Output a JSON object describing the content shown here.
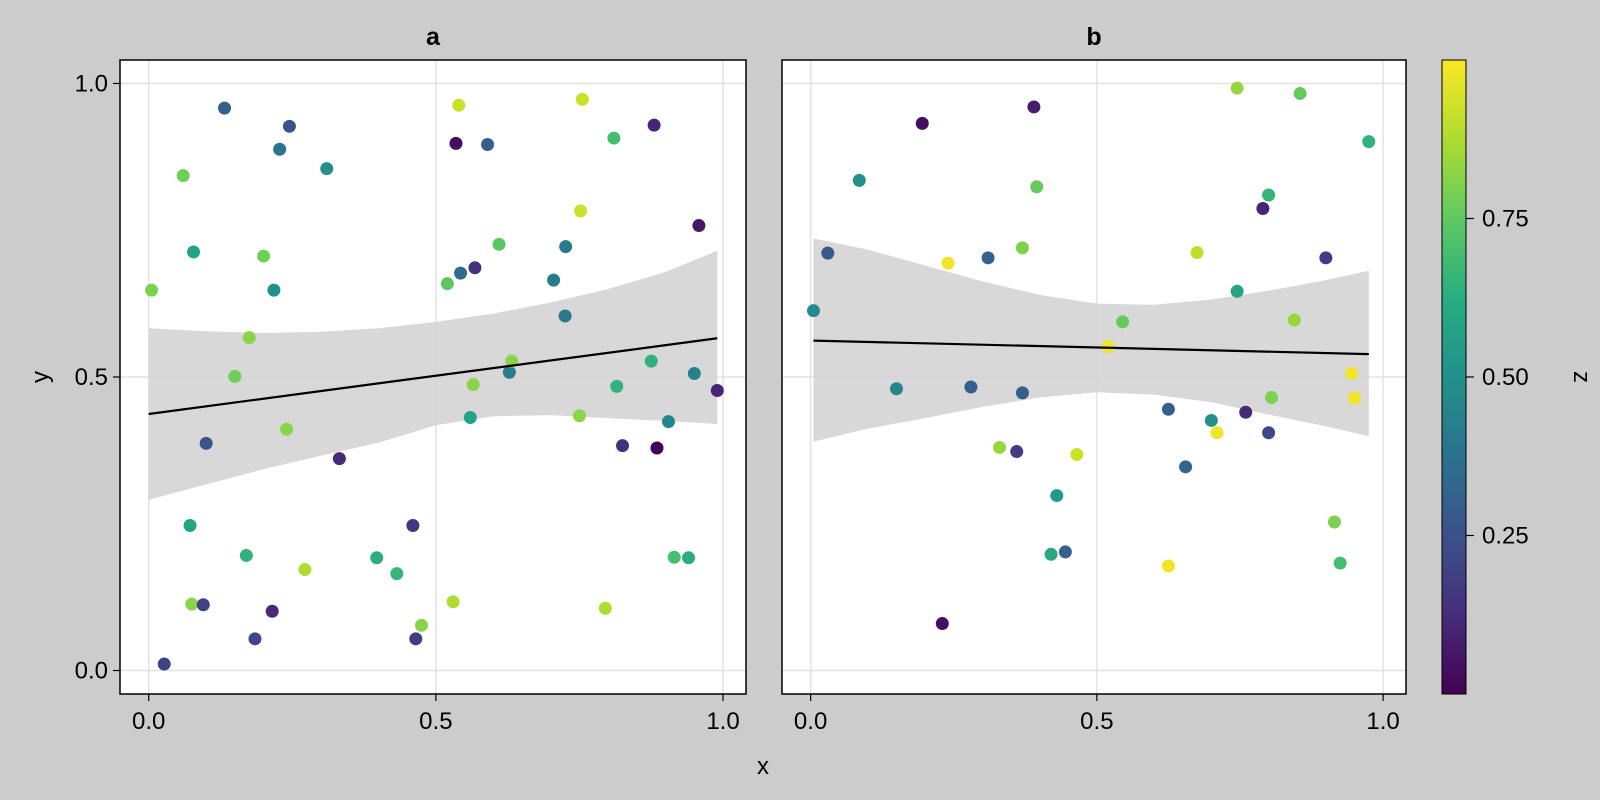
{
  "chart_data": {
    "type": "scatter",
    "xlabel": "x",
    "ylabel": "y",
    "colorbar": {
      "label": "z",
      "range": [
        0.0,
        1.0
      ],
      "ticks": [
        "0.25",
        "0.50",
        "0.75"
      ],
      "tick_values": [
        0.25,
        0.5,
        0.75
      ],
      "colormap": "viridis"
    },
    "grid": true,
    "panels": [
      {
        "title": "a",
        "xlim": [
          -0.05,
          1.04
        ],
        "ylim": [
          -0.04,
          1.04
        ],
        "xticks": [
          "0.0",
          "0.5",
          "1.0"
        ],
        "xtick_values": [
          0.0,
          0.5,
          1.0
        ],
        "yticks": [
          "0.0",
          "0.5",
          "1.0"
        ],
        "ytick_values": [
          0.0,
          0.5,
          1.0
        ],
        "fit": {
          "x": [
            0.0,
            0.99
          ],
          "y": [
            0.437,
            0.566
          ]
        },
        "band": {
          "x": [
            0.0,
            0.1,
            0.2,
            0.3,
            0.4,
            0.5,
            0.6,
            0.7,
            0.8,
            0.9,
            0.99
          ],
          "upper": [
            0.583,
            0.578,
            0.575,
            0.577,
            0.583,
            0.594,
            0.608,
            0.627,
            0.65,
            0.679,
            0.715
          ],
          "lower": [
            0.291,
            0.317,
            0.343,
            0.366,
            0.388,
            0.418,
            0.433,
            0.435,
            0.43,
            0.425,
            0.42
          ]
        },
        "points": [
          {
            "x": 0.005,
            "y": 0.648,
            "z": 0.8
          },
          {
            "x": 0.027,
            "y": 0.011,
            "z": 0.2
          },
          {
            "x": 0.06,
            "y": 0.843,
            "z": 0.78
          },
          {
            "x": 0.072,
            "y": 0.247,
            "z": 0.58
          },
          {
            "x": 0.075,
            "y": 0.113,
            "z": 0.82
          },
          {
            "x": 0.078,
            "y": 0.713,
            "z": 0.58
          },
          {
            "x": 0.095,
            "y": 0.112,
            "z": 0.2
          },
          {
            "x": 0.1,
            "y": 0.387,
            "z": 0.26
          },
          {
            "x": 0.132,
            "y": 0.958,
            "z": 0.3
          },
          {
            "x": 0.15,
            "y": 0.501,
            "z": 0.78
          },
          {
            "x": 0.17,
            "y": 0.196,
            "z": 0.64
          },
          {
            "x": 0.175,
            "y": 0.567,
            "z": 0.82
          },
          {
            "x": 0.185,
            "y": 0.054,
            "z": 0.22
          },
          {
            "x": 0.2,
            "y": 0.706,
            "z": 0.78
          },
          {
            "x": 0.215,
            "y": 0.101,
            "z": 0.12
          },
          {
            "x": 0.218,
            "y": 0.648,
            "z": 0.5
          },
          {
            "x": 0.228,
            "y": 0.888,
            "z": 0.38
          },
          {
            "x": 0.24,
            "y": 0.411,
            "z": 0.82
          },
          {
            "x": 0.245,
            "y": 0.927,
            "z": 0.26
          },
          {
            "x": 0.272,
            "y": 0.172,
            "z": 0.88
          },
          {
            "x": 0.31,
            "y": 0.855,
            "z": 0.5
          },
          {
            "x": 0.332,
            "y": 0.361,
            "z": 0.12
          },
          {
            "x": 0.397,
            "y": 0.192,
            "z": 0.62
          },
          {
            "x": 0.432,
            "y": 0.165,
            "z": 0.66
          },
          {
            "x": 0.46,
            "y": 0.247,
            "z": 0.16
          },
          {
            "x": 0.465,
            "y": 0.054,
            "z": 0.18
          },
          {
            "x": 0.475,
            "y": 0.077,
            "z": 0.82
          },
          {
            "x": 0.52,
            "y": 0.659,
            "z": 0.74
          },
          {
            "x": 0.53,
            "y": 0.117,
            "z": 0.88
          },
          {
            "x": 0.535,
            "y": 0.898,
            "z": 0.04
          },
          {
            "x": 0.54,
            "y": 0.963,
            "z": 0.92
          },
          {
            "x": 0.543,
            "y": 0.677,
            "z": 0.34
          },
          {
            "x": 0.56,
            "y": 0.431,
            "z": 0.58
          },
          {
            "x": 0.565,
            "y": 0.487,
            "z": 0.82
          },
          {
            "x": 0.568,
            "y": 0.686,
            "z": 0.14
          },
          {
            "x": 0.59,
            "y": 0.896,
            "z": 0.3
          },
          {
            "x": 0.61,
            "y": 0.726,
            "z": 0.74
          },
          {
            "x": 0.628,
            "y": 0.508,
            "z": 0.42
          },
          {
            "x": 0.632,
            "y": 0.527,
            "z": 0.82
          },
          {
            "x": 0.705,
            "y": 0.665,
            "z": 0.42
          },
          {
            "x": 0.725,
            "y": 0.604,
            "z": 0.4
          },
          {
            "x": 0.726,
            "y": 0.722,
            "z": 0.4
          },
          {
            "x": 0.75,
            "y": 0.434,
            "z": 0.82
          },
          {
            "x": 0.752,
            "y": 0.783,
            "z": 0.92
          },
          {
            "x": 0.755,
            "y": 0.973,
            "z": 0.92
          },
          {
            "x": 0.795,
            "y": 0.106,
            "z": 0.88
          },
          {
            "x": 0.81,
            "y": 0.907,
            "z": 0.7
          },
          {
            "x": 0.815,
            "y": 0.484,
            "z": 0.64
          },
          {
            "x": 0.825,
            "y": 0.383,
            "z": 0.14
          },
          {
            "x": 0.875,
            "y": 0.527,
            "z": 0.64
          },
          {
            "x": 0.88,
            "y": 0.929,
            "z": 0.1
          },
          {
            "x": 0.885,
            "y": 0.379,
            "z": 0.0
          },
          {
            "x": 0.905,
            "y": 0.424,
            "z": 0.46
          },
          {
            "x": 0.915,
            "y": 0.193,
            "z": 0.7
          },
          {
            "x": 0.94,
            "y": 0.192,
            "z": 0.62
          },
          {
            "x": 0.95,
            "y": 0.506,
            "z": 0.44
          },
          {
            "x": 0.958,
            "y": 0.758,
            "z": 0.06
          },
          {
            "x": 0.99,
            "y": 0.477,
            "z": 0.1
          }
        ]
      },
      {
        "title": "b",
        "xlim": [
          -0.05,
          1.04
        ],
        "ylim": [
          -0.04,
          1.04
        ],
        "xticks": [
          "0.0",
          "0.5",
          "1.0"
        ],
        "xtick_values": [
          0.0,
          0.5,
          1.0
        ],
        "fit": {
          "x": [
            0.005,
            0.975
          ],
          "y": [
            0.562,
            0.539
          ]
        },
        "band": {
          "x": [
            0.005,
            0.1,
            0.2,
            0.3,
            0.4,
            0.5,
            0.6,
            0.7,
            0.8,
            0.9,
            0.975
          ],
          "upper": [
            0.736,
            0.717,
            0.69,
            0.663,
            0.64,
            0.625,
            0.623,
            0.632,
            0.647,
            0.665,
            0.681
          ],
          "lower": [
            0.39,
            0.412,
            0.43,
            0.449,
            0.465,
            0.474,
            0.47,
            0.457,
            0.436,
            0.416,
            0.399
          ]
        },
        "points": [
          {
            "x": 0.005,
            "y": 0.613,
            "z": 0.48
          },
          {
            "x": 0.03,
            "y": 0.711,
            "z": 0.28
          },
          {
            "x": 0.085,
            "y": 0.835,
            "z": 0.5
          },
          {
            "x": 0.15,
            "y": 0.48,
            "z": 0.46
          },
          {
            "x": 0.195,
            "y": 0.932,
            "z": 0.04
          },
          {
            "x": 0.23,
            "y": 0.08,
            "z": 0.04
          },
          {
            "x": 0.24,
            "y": 0.694,
            "z": 0.98
          },
          {
            "x": 0.28,
            "y": 0.483,
            "z": 0.3
          },
          {
            "x": 0.31,
            "y": 0.703,
            "z": 0.32
          },
          {
            "x": 0.33,
            "y": 0.38,
            "z": 0.84
          },
          {
            "x": 0.36,
            "y": 0.373,
            "z": 0.18
          },
          {
            "x": 0.37,
            "y": 0.473,
            "z": 0.3
          },
          {
            "x": 0.37,
            "y": 0.72,
            "z": 0.8
          },
          {
            "x": 0.39,
            "y": 0.96,
            "z": 0.08
          },
          {
            "x": 0.395,
            "y": 0.824,
            "z": 0.76
          },
          {
            "x": 0.42,
            "y": 0.198,
            "z": 0.6
          },
          {
            "x": 0.43,
            "y": 0.298,
            "z": 0.54
          },
          {
            "x": 0.445,
            "y": 0.202,
            "z": 0.3
          },
          {
            "x": 0.465,
            "y": 0.368,
            "z": 0.92
          },
          {
            "x": 0.52,
            "y": 0.552,
            "z": 0.98
          },
          {
            "x": 0.545,
            "y": 0.594,
            "z": 0.76
          },
          {
            "x": 0.625,
            "y": 0.445,
            "z": 0.3
          },
          {
            "x": 0.625,
            "y": 0.178,
            "z": 0.98
          },
          {
            "x": 0.655,
            "y": 0.347,
            "z": 0.32
          },
          {
            "x": 0.675,
            "y": 0.712,
            "z": 0.9
          },
          {
            "x": 0.7,
            "y": 0.426,
            "z": 0.5
          },
          {
            "x": 0.71,
            "y": 0.405,
            "z": 0.98
          },
          {
            "x": 0.745,
            "y": 0.992,
            "z": 0.84
          },
          {
            "x": 0.745,
            "y": 0.646,
            "z": 0.58
          },
          {
            "x": 0.76,
            "y": 0.44,
            "z": 0.12
          },
          {
            "x": 0.79,
            "y": 0.787,
            "z": 0.1
          },
          {
            "x": 0.8,
            "y": 0.81,
            "z": 0.66
          },
          {
            "x": 0.8,
            "y": 0.405,
            "z": 0.22
          },
          {
            "x": 0.805,
            "y": 0.465,
            "z": 0.8
          },
          {
            "x": 0.845,
            "y": 0.597,
            "z": 0.84
          },
          {
            "x": 0.855,
            "y": 0.983,
            "z": 0.76
          },
          {
            "x": 0.9,
            "y": 0.703,
            "z": 0.18
          },
          {
            "x": 0.915,
            "y": 0.253,
            "z": 0.8
          },
          {
            "x": 0.925,
            "y": 0.183,
            "z": 0.7
          },
          {
            "x": 0.945,
            "y": 0.506,
            "z": 0.98
          },
          {
            "x": 0.95,
            "y": 0.464,
            "z": 0.98
          },
          {
            "x": 0.975,
            "y": 0.901,
            "z": 0.64
          }
        ]
      }
    ]
  }
}
